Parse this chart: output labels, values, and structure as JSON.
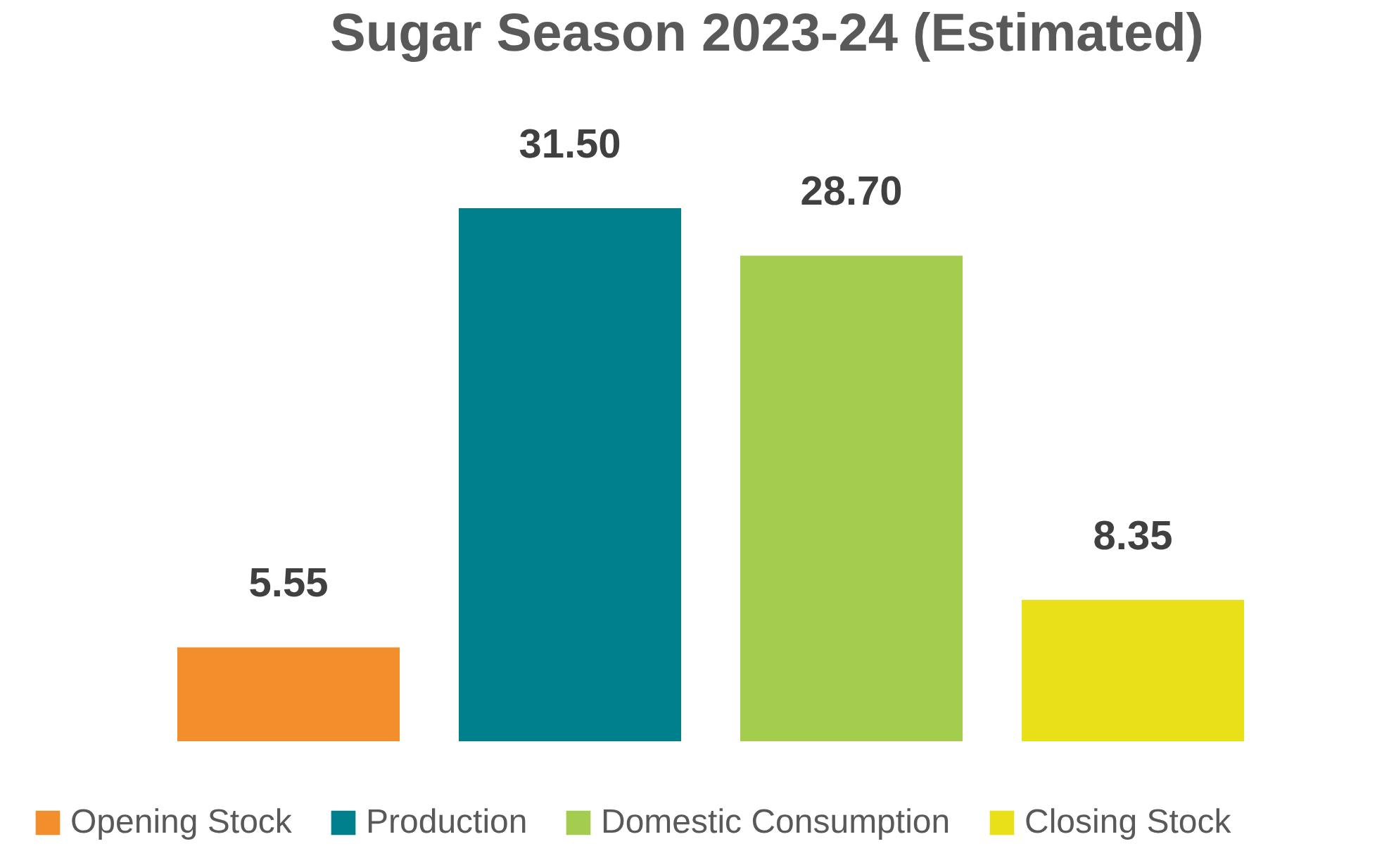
{
  "chart_data": {
    "type": "bar",
    "title": "Sugar Season 2023-24 (Estimated)",
    "categories": [
      null,
      null,
      null,
      null
    ],
    "series": [
      {
        "name": "Opening Stock",
        "color": "#f28e2b",
        "values": [
          5.55,
          null,
          null,
          null
        ],
        "value_labels": [
          "5.55",
          null,
          null,
          null
        ]
      },
      {
        "name": "Production",
        "color": "#00808c",
        "values": [
          null,
          31.5,
          null,
          null
        ],
        "value_labels": [
          null,
          "31.50",
          null,
          null
        ]
      },
      {
        "name": "Domestic Consumption",
        "color": "#a4cd50",
        "values": [
          null,
          null,
          28.7,
          null
        ],
        "value_labels": [
          null,
          null,
          "28.70",
          null
        ]
      },
      {
        "name": "Closing Stock",
        "color": "#e9e01a",
        "values": [
          null,
          null,
          null,
          8.35
        ],
        "value_labels": [
          null,
          null,
          null,
          "8.35"
        ]
      }
    ],
    "stacked": true,
    "legend": "bottom",
    "tick_labels": false
  }
}
